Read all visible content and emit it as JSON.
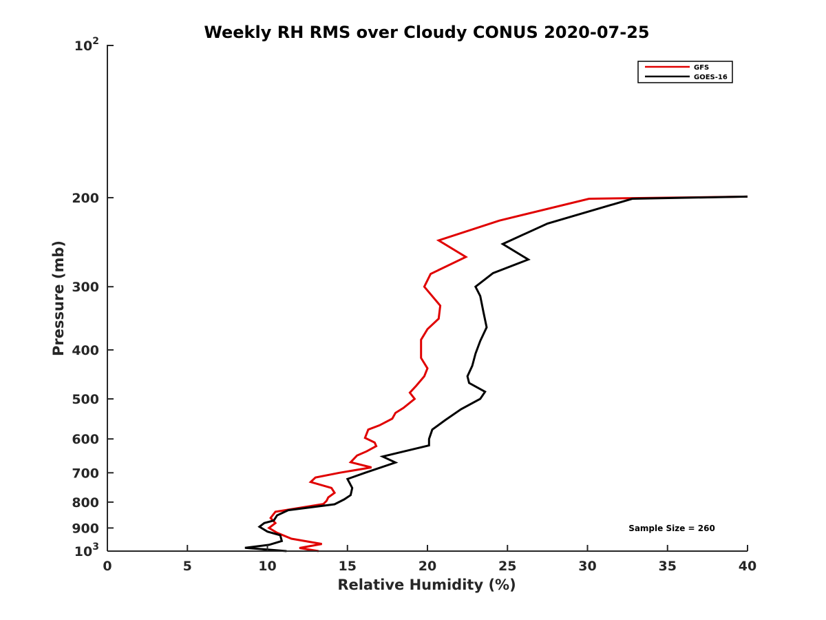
{
  "chart_data": {
    "type": "line",
    "title": "Weekly RH RMS over Cloudy CONUS 2020-07-25",
    "xlabel": "Relative Humidity (%)",
    "ylabel": "Pressure (mb)",
    "xlim": [
      0,
      40
    ],
    "ylim": [
      100,
      1000
    ],
    "y_scale": "log",
    "y_reversed": true,
    "grid": false,
    "legend_position": "top-right",
    "x_ticks": [
      0,
      5,
      10,
      15,
      20,
      25,
      30,
      35,
      40
    ],
    "y_ticks": [
      {
        "value": 100,
        "label": "10",
        "sup": "2"
      },
      {
        "value": 200,
        "label": "200",
        "sup": ""
      },
      {
        "value": 300,
        "label": "300",
        "sup": ""
      },
      {
        "value": 400,
        "label": "400",
        "sup": ""
      },
      {
        "value": 500,
        "label": "500",
        "sup": ""
      },
      {
        "value": 600,
        "label": "600",
        "sup": ""
      },
      {
        "value": 700,
        "label": "700",
        "sup": ""
      },
      {
        "value": 800,
        "label": "800",
        "sup": ""
      },
      {
        "value": 900,
        "label": "900",
        "sup": ""
      },
      {
        "value": 1000,
        "label": "10",
        "sup": "3"
      }
    ],
    "annotation": "Sample Size = 260",
    "series": [
      {
        "name": "GFS",
        "color": "#e00000",
        "points": [
          [
            40.0,
            199
          ],
          [
            30.1,
            201
          ],
          [
            24.5,
            222
          ],
          [
            20.7,
            243
          ],
          [
            22.4,
            262
          ],
          [
            20.2,
            283
          ],
          [
            19.8,
            300
          ],
          [
            20.8,
            327
          ],
          [
            20.7,
            347
          ],
          [
            20.0,
            364
          ],
          [
            19.6,
            382
          ],
          [
            19.6,
            400
          ],
          [
            19.6,
            415
          ],
          [
            20.0,
            435
          ],
          [
            19.8,
            451
          ],
          [
            19.3,
            471
          ],
          [
            18.9,
            486
          ],
          [
            19.2,
            500
          ],
          [
            18.5,
            521
          ],
          [
            18.0,
            533
          ],
          [
            17.8,
            547
          ],
          [
            17.0,
            564
          ],
          [
            16.3,
            575
          ],
          [
            16.1,
            597
          ],
          [
            16.7,
            610
          ],
          [
            16.8,
            620
          ],
          [
            16.2,
            635
          ],
          [
            15.6,
            647
          ],
          [
            15.2,
            667
          ],
          [
            16.5,
            683
          ],
          [
            14.5,
            700
          ],
          [
            13.0,
            715
          ],
          [
            12.7,
            730
          ],
          [
            14.0,
            750
          ],
          [
            14.2,
            767
          ],
          [
            13.8,
            783
          ],
          [
            13.7,
            795
          ],
          [
            13.5,
            807
          ],
          [
            10.5,
            836
          ],
          [
            10.2,
            860
          ],
          [
            10.5,
            880
          ],
          [
            10.1,
            900
          ],
          [
            10.6,
            920
          ],
          [
            11.5,
            945
          ],
          [
            13.4,
            968
          ],
          [
            12.0,
            986
          ],
          [
            13.2,
            1000
          ]
        ]
      },
      {
        "name": "GOES-16",
        "color": "#000000",
        "points": [
          [
            40.0,
            199
          ],
          [
            32.8,
            201
          ],
          [
            27.5,
            225
          ],
          [
            24.7,
            247
          ],
          [
            26.3,
            265
          ],
          [
            24.1,
            282
          ],
          [
            23.0,
            300
          ],
          [
            23.3,
            313
          ],
          [
            23.5,
            337
          ],
          [
            23.7,
            361
          ],
          [
            23.3,
            384
          ],
          [
            23.0,
            407
          ],
          [
            22.8,
            430
          ],
          [
            22.5,
            451
          ],
          [
            22.6,
            465
          ],
          [
            23.6,
            484
          ],
          [
            23.3,
            500
          ],
          [
            22.1,
            524
          ],
          [
            21.1,
            551
          ],
          [
            20.3,
            575
          ],
          [
            20.1,
            600
          ],
          [
            20.1,
            618
          ],
          [
            17.2,
            650
          ],
          [
            18.0,
            668
          ],
          [
            16.1,
            700
          ],
          [
            15.0,
            720
          ],
          [
            15.3,
            750
          ],
          [
            15.2,
            775
          ],
          [
            14.8,
            790
          ],
          [
            14.2,
            808
          ],
          [
            11.3,
            830
          ],
          [
            10.6,
            850
          ],
          [
            10.4,
            870
          ],
          [
            9.8,
            880
          ],
          [
            9.5,
            895
          ],
          [
            10.0,
            915
          ],
          [
            10.8,
            930
          ],
          [
            10.9,
            955
          ],
          [
            10.1,
            972
          ],
          [
            8.6,
            985
          ],
          [
            11.2,
            1000
          ]
        ]
      }
    ]
  }
}
